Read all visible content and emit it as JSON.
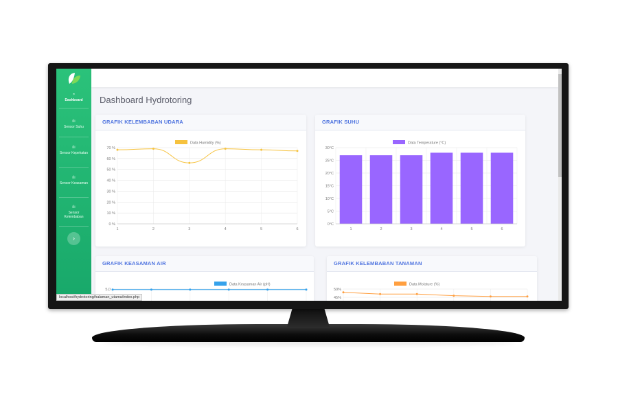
{
  "app": {
    "page_title": "Dashboard Hydrotoring",
    "status_url": "localhost/hydrotoring/halaman_utama/index.php"
  },
  "sidebar": {
    "items": [
      {
        "label": "Dashboard",
        "icon": "dashboard-icon",
        "active": true
      },
      {
        "label": "Sensor Suhu",
        "icon": "sensor-icon"
      },
      {
        "label": "Sensor Kepekatan",
        "icon": "sensor-icon"
      },
      {
        "label": "Sensor Keasaman",
        "icon": "sensor-icon"
      },
      {
        "label": "Sensor Kelembaban",
        "icon": "sensor-icon"
      }
    ],
    "toggle_glyph": "›"
  },
  "colors": {
    "sidebar": "#1cc88a",
    "heading": "#4e73df",
    "humidity": "#f6c23e",
    "temperature": "#9966ff",
    "ph": "#36a2eb",
    "moisture": "#ff9f40"
  },
  "cards": {
    "humidity_title": "GRAFIK KELEMBABAN UDARA",
    "temperature_title": "GRAFIK SUHU",
    "ph_title": "GRAFIK KEASAMAN AIR",
    "moisture_title": "GRAFIK KELEMBABAN TANAMAN"
  },
  "chart_data": [
    {
      "type": "line",
      "legend": "Data Humidity (%)",
      "x": [
        "1",
        "2",
        "3",
        "4",
        "5",
        "6"
      ],
      "values": [
        68,
        69,
        56,
        69,
        68,
        67
      ],
      "y_ticks": [
        "0 %",
        "10 %",
        "20 %",
        "30 %",
        "40 %",
        "50 %",
        "60 %",
        "70 %"
      ],
      "ylim": [
        0,
        70
      ],
      "color": "#f6c23e"
    },
    {
      "type": "bar",
      "legend": "Data Temperature (°C)",
      "x": [
        "1",
        "2",
        "3",
        "4",
        "5",
        "6"
      ],
      "values": [
        27,
        27,
        27,
        28,
        28,
        28
      ],
      "y_ticks": [
        "0°C",
        "5°C",
        "10°C",
        "15°C",
        "20°C",
        "25°C",
        "30°C"
      ],
      "ylim": [
        0,
        30
      ],
      "color": "#9966ff"
    },
    {
      "type": "line",
      "legend": "Data Keasaman Air (pH)",
      "values": [
        4.9,
        4.9,
        4.9,
        4.9,
        4.9,
        4.9
      ],
      "y_ticks": [
        "5,0"
      ],
      "color": "#36a2eb"
    },
    {
      "type": "line",
      "legend": "Data Moisture (%)",
      "values": [
        48,
        47,
        47,
        46,
        45.5,
        45.5
      ],
      "y_ticks": [
        "45%",
        "50%"
      ],
      "color": "#ff9f40"
    }
  ]
}
